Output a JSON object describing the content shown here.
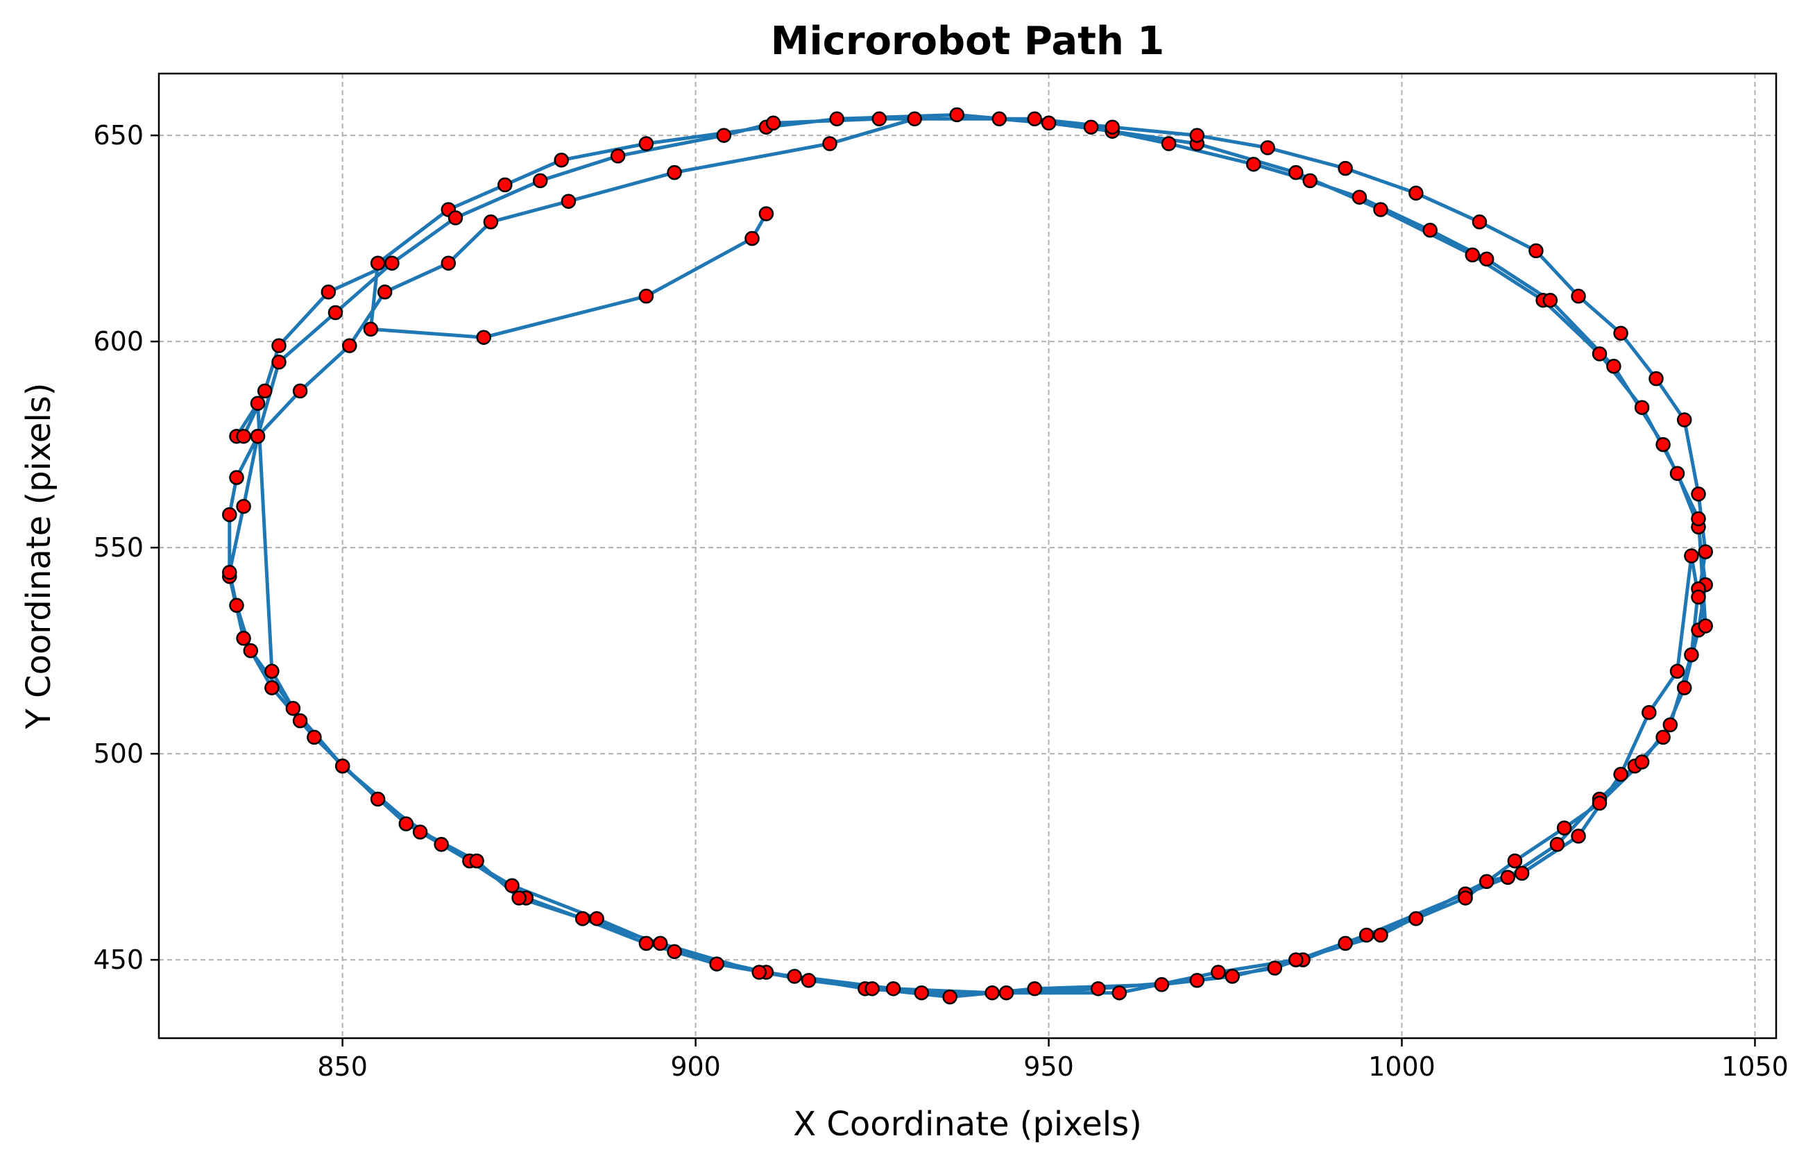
{
  "chart_data": {
    "type": "line",
    "title": "Microrobot Path 1",
    "xlabel": "X Coordinate (pixels)",
    "ylabel": "Y Coordinate (pixels)",
    "xlim": [
      824,
      1053
    ],
    "ylim": [
      431,
      665
    ],
    "xticks": [
      850,
      900,
      950,
      1000,
      1050
    ],
    "yticks": [
      450,
      500,
      550,
      600,
      650
    ],
    "grid": true,
    "colors": {
      "line": "#1f77b4",
      "marker_fill": "#ff0000",
      "marker_edge": "#000000",
      "grid": "#b0b0b0"
    },
    "series": [
      {
        "x": [
          910,
          908,
          893,
          870,
          854,
          855,
          865,
          873,
          881,
          893,
          910,
          920,
          937,
          950,
          959,
          971,
          985,
          997,
          1010,
          1020,
          1028,
          1034,
          1039,
          1042,
          1043,
          1042,
          1040,
          1037,
          1033,
          1028,
          1022,
          1015,
          1009,
          995,
          982,
          971,
          957,
          944,
          932,
          924,
          910,
          897,
          886,
          874,
          864,
          855,
          846,
          840,
          836,
          834,
          834,
          835,
          838,
          841,
          849,
          857,
          866,
          878,
          889,
          904,
          911,
          926,
          943,
          956,
          967,
          979,
          987,
          994,
          1004,
          1012,
          1021,
          1030,
          1037,
          1042,
          1043,
          1042,
          1041,
          1038,
          1034,
          1028,
          1023,
          1016,
          1009,
          1002,
          992,
          986,
          976,
          966,
          948,
          936,
          925,
          916,
          903,
          893,
          884,
          876,
          868,
          861,
          850,
          843,
          837,
          835,
          834,
          836,
          838,
          844,
          851,
          856,
          865,
          871,
          882,
          897,
          919,
          931,
          948,
          959,
          971,
          981,
          992,
          1002,
          1011,
          1019,
          1025,
          1031,
          1036,
          1040,
          1042,
          1043,
          1042,
          1041,
          1039,
          1035,
          1031,
          1025,
          1017,
          1012,
          997,
          985,
          974,
          960,
          942,
          928,
          914,
          909,
          895,
          884,
          875,
          869,
          859,
          850,
          844,
          840,
          838,
          835,
          836,
          839,
          841,
          848,
          857
        ],
        "y": [
          631,
          625,
          611,
          601,
          603,
          619,
          632,
          638,
          644,
          648,
          652,
          654,
          655,
          653,
          651,
          648,
          641,
          632,
          621,
          610,
          597,
          584,
          568,
          555,
          541,
          530,
          516,
          504,
          497,
          489,
          478,
          470,
          466,
          456,
          448,
          445,
          443,
          442,
          442,
          443,
          447,
          452,
          460,
          468,
          478,
          489,
          504,
          516,
          528,
          543,
          558,
          567,
          577,
          595,
          607,
          619,
          630,
          639,
          645,
          650,
          653,
          654,
          654,
          652,
          648,
          643,
          639,
          635,
          627,
          620,
          610,
          594,
          575,
          557,
          531,
          540,
          524,
          507,
          498,
          488,
          482,
          474,
          465,
          460,
          454,
          450,
          446,
          444,
          443,
          441,
          443,
          445,
          449,
          454,
          460,
          465,
          474,
          481,
          497,
          511,
          525,
          536,
          544,
          560,
          577,
          588,
          599,
          612,
          619,
          629,
          634,
          641,
          648,
          654,
          654,
          652,
          650,
          647,
          642,
          636,
          629,
          622,
          611,
          602,
          591,
          581,
          563,
          549,
          538,
          548,
          520,
          510,
          495,
          480,
          471,
          469,
          456,
          450,
          447,
          442,
          442,
          443,
          446,
          447,
          454,
          460,
          465,
          474,
          483,
          497,
          508,
          520,
          585,
          577,
          577,
          588,
          599,
          612,
          619
        ]
      }
    ]
  }
}
